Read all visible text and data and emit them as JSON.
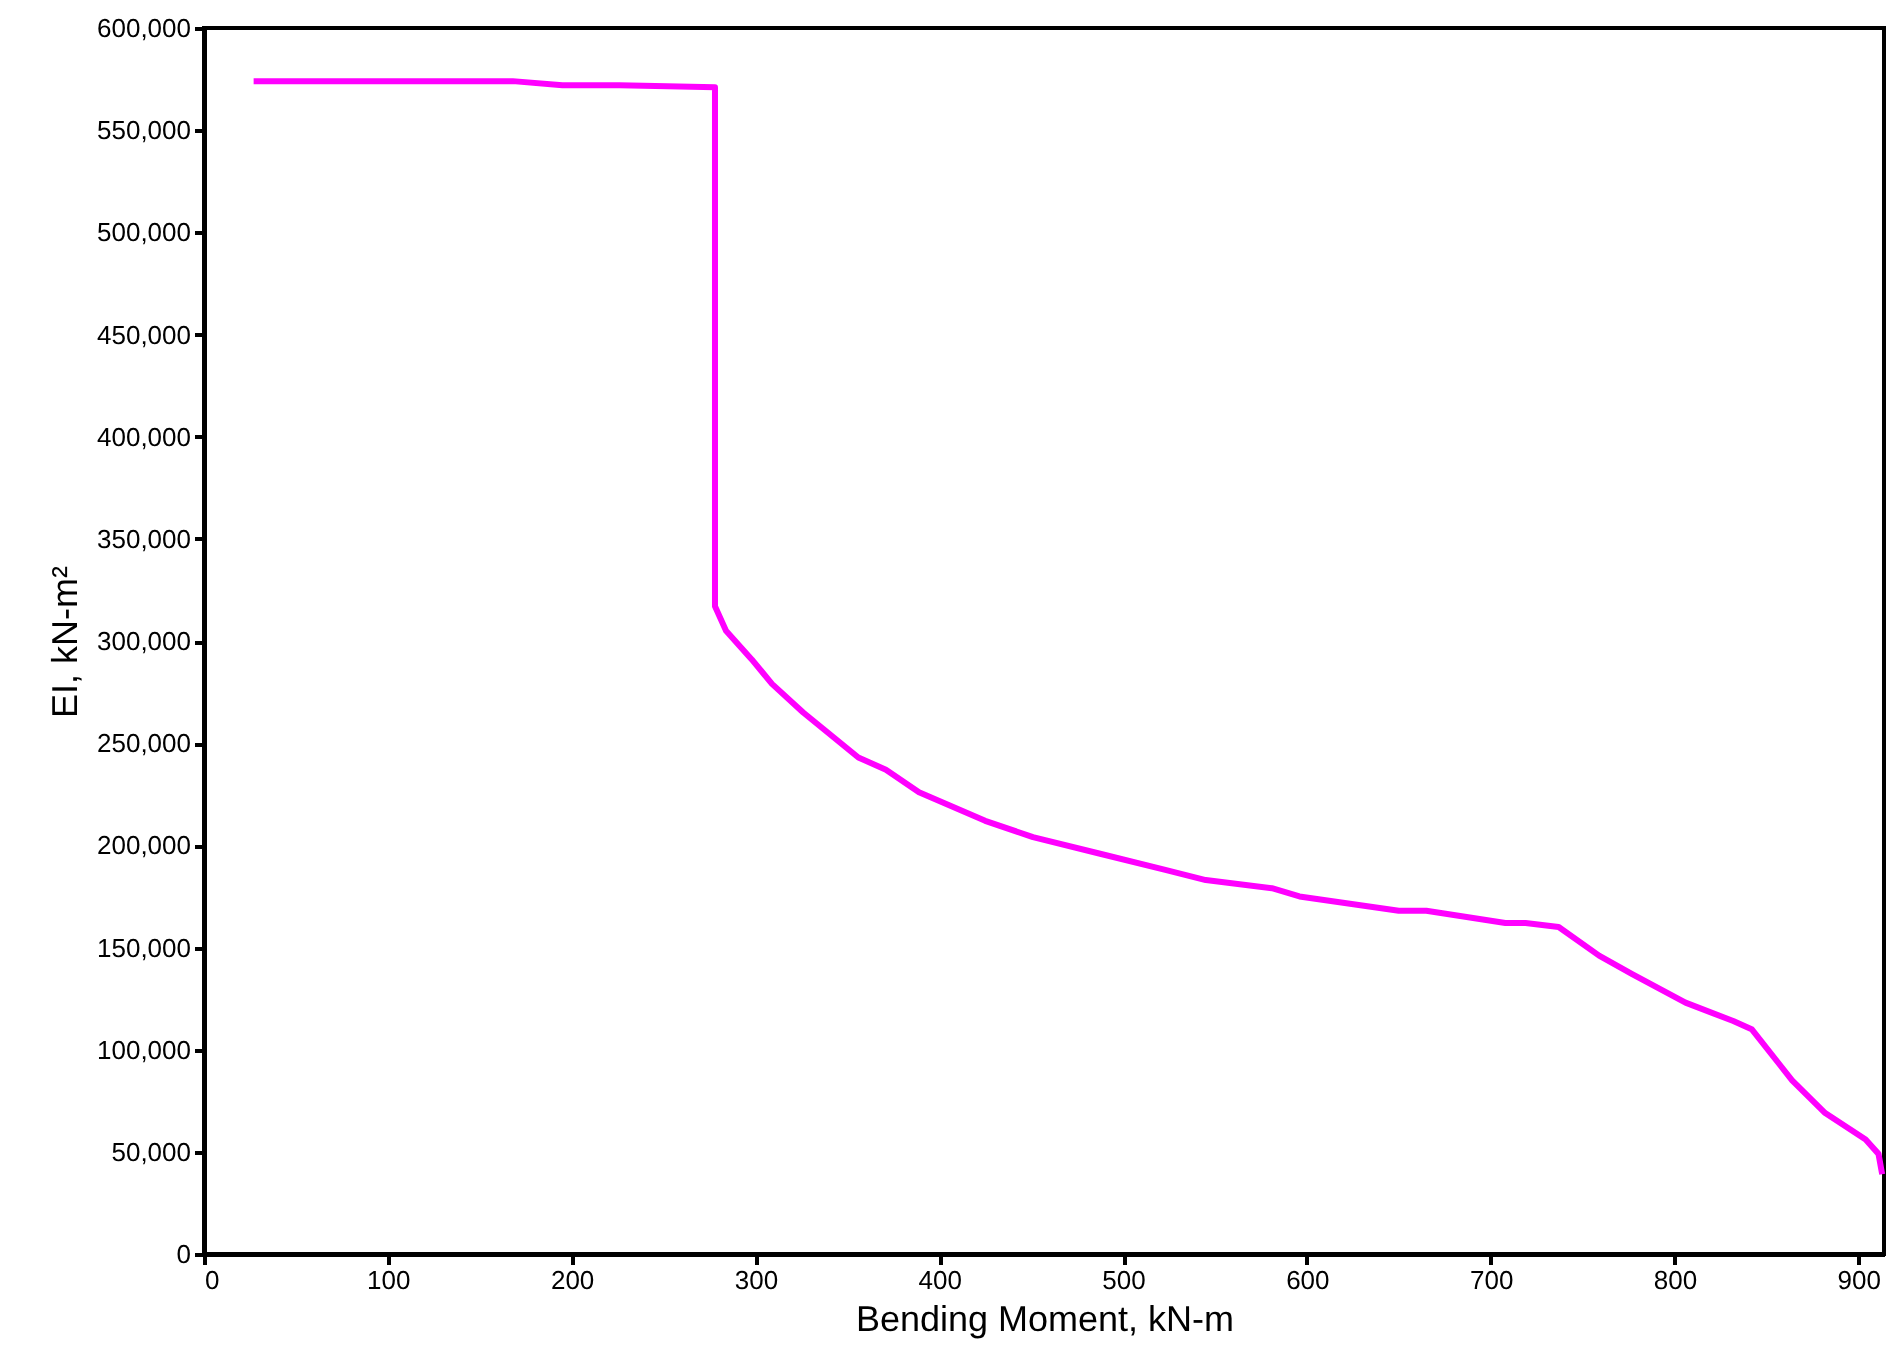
{
  "chart_data": {
    "type": "line",
    "xlabel": "Bending Moment, kN-m",
    "ylabel": "EI, kN-m²",
    "xlim": [
      0,
      914
    ],
    "xticks": [
      0,
      100,
      200,
      300,
      400,
      500,
      600,
      700,
      800,
      900
    ],
    "ylim": [
      0,
      600000
    ],
    "yticks": [
      0,
      {
        "value": 50000,
        "label": "50,000"
      },
      {
        "value": 100000,
        "label": "100,000"
      },
      {
        "value": 150000,
        "label": "150,000"
      },
      {
        "value": 200000,
        "label": "200,000"
      },
      {
        "value": 250000,
        "label": "250,000"
      },
      {
        "value": 300000,
        "label": "300,000"
      },
      {
        "value": 350000,
        "label": "350,000"
      },
      {
        "value": 400000,
        "label": "400,000"
      },
      {
        "value": 450000,
        "label": "450,000"
      },
      {
        "value": 500000,
        "label": "500,000"
      },
      {
        "value": 550000,
        "label": "550,000"
      },
      {
        "value": 600000,
        "label": "600,000"
      }
    ],
    "grid": false,
    "marker": "none",
    "line_style": "solid",
    "series": [
      {
        "color": "#ff00ff",
        "x": [
          27,
          168,
          195,
          226,
          278,
          278,
          284,
          298,
          309,
          326,
          356,
          371,
          389,
          425,
          451,
          487,
          523,
          545,
          581,
          596,
          650,
          665,
          708,
          719,
          737,
          759,
          777,
          806,
          832,
          842,
          864,
          882,
          904,
          911,
          913
        ],
        "values": [
          574000,
          574000,
          572000,
          572000,
          571000,
          317000,
          305000,
          291000,
          279000,
          265000,
          243000,
          237000,
          226000,
          212000,
          204000,
          196000,
          188000,
          183000,
          179000,
          175000,
          168000,
          168000,
          162000,
          162000,
          160000,
          146000,
          137000,
          123000,
          114000,
          110000,
          85000,
          69000,
          56000,
          49000,
          39000
        ]
      }
    ]
  }
}
